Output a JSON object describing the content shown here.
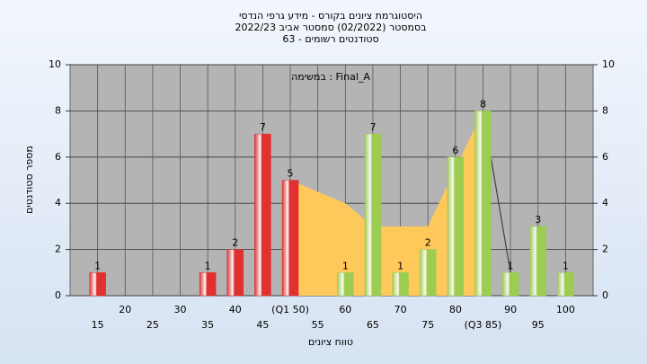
{
  "chart_data": {
    "type": "bar",
    "title": [
      "היסטוגרמת ציונים בקורס - מידע גרפי הנדסי",
      "בסמסטר  (02/2022)  סמסטר אביב 2022/23",
      "סטודנטים רשומים - 63"
    ],
    "annotation": "במשימה : Final_A",
    "x_label": "טווח ציונים",
    "y_label": "מספר סטודנטים",
    "categories": [
      "15",
      "20",
      "25",
      "30",
      "35",
      "40",
      "45",
      "(Q1 50)",
      "55",
      "60",
      "65",
      "70",
      "75",
      "80",
      "(Q3 85)",
      "90",
      "95",
      "100"
    ],
    "values": [
      1,
      0,
      0,
      0,
      1,
      2,
      7,
      5,
      0,
      1,
      7,
      1,
      2,
      6,
      8,
      1,
      3,
      1
    ],
    "colors": [
      "#e03030",
      "#e03030",
      "#e03030",
      "#e03030",
      "#e03030",
      "#e03030",
      "#e03030",
      "#e03030",
      "#9ccc50",
      "#9ccc50",
      "#9ccc50",
      "#9ccc50",
      "#9ccc50",
      "#9ccc50",
      "#9ccc50",
      "#9ccc50",
      "#9ccc50",
      "#9ccc50"
    ],
    "area": {
      "color": "#ffc85a",
      "values": [
        null,
        null,
        null,
        null,
        null,
        null,
        null,
        5,
        4.5,
        4,
        3,
        3,
        3,
        5.5,
        8,
        null,
        null,
        null
      ]
    },
    "line": {
      "color": "#404040",
      "values": [
        null,
        null,
        null,
        null,
        null,
        null,
        null,
        null,
        null,
        null,
        null,
        null,
        null,
        null,
        8,
        1,
        null,
        null
      ]
    },
    "ylim": [
      0,
      10
    ],
    "yticks": [
      0,
      2,
      4,
      6,
      8,
      10
    ],
    "y2lim": [
      0,
      10
    ],
    "y2ticks": [
      0,
      2,
      4,
      6,
      8,
      10
    ],
    "grid": true
  }
}
